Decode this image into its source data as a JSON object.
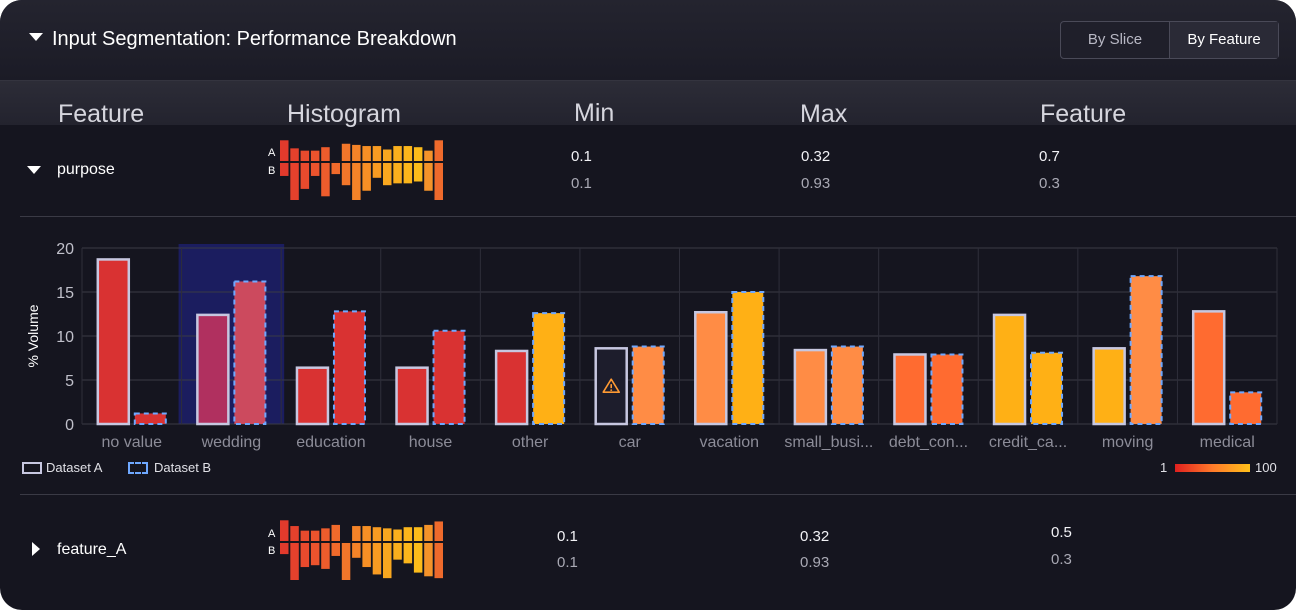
{
  "header": {
    "title": "Input Segmentation: Performance Breakdown",
    "toggle": {
      "options": [
        "By Slice",
        "By Feature"
      ],
      "selected": "By Feature"
    }
  },
  "columns": [
    "Feature",
    "Histogram",
    "Min",
    "Max",
    "Feature"
  ],
  "rows": [
    {
      "name": "purpose",
      "expanded": true,
      "hist_labels": [
        "A",
        "B"
      ],
      "min": [
        "0.1",
        "0.1"
      ],
      "max": [
        "0.32",
        "0.93"
      ],
      "feature": [
        "0.7",
        "0.3"
      ]
    },
    {
      "name": "feature_A",
      "expanded": false,
      "hist_labels": [
        "A",
        "B"
      ],
      "min": [
        "0.1",
        "0.1"
      ],
      "max": [
        "0.32",
        "0.93"
      ],
      "feature": [
        "0.5",
        "0.3"
      ]
    }
  ],
  "chart_data": {
    "type": "bar",
    "ylabel": "% Volume",
    "ylim": [
      0,
      20
    ],
    "yticks": [
      0,
      5,
      10,
      15,
      20
    ],
    "grid": true,
    "categories": [
      "no value",
      "wedding",
      "education",
      "house",
      "other",
      "car",
      "vacation",
      "small_busi...",
      "debt_con...",
      "credit_ca...",
      "moving",
      "medical"
    ],
    "highlighted_category": "wedding",
    "warning_on": {
      "category": "car",
      "series": "Dataset A"
    },
    "series": [
      {
        "name": "Dataset A",
        "values": [
          18.7,
          12.4,
          6.4,
          6.4,
          8.3,
          8.6,
          12.7,
          8.4,
          7.9,
          12.4,
          8.6,
          12.8
        ],
        "colors": [
          "#d93232",
          "#b0305f",
          "#d93232",
          "#d93232",
          "#d93232",
          "#1d1d2c",
          "#ff8c45",
          "#ff8c45",
          "#ff6b30",
          "#ffb015",
          "#ffb015",
          "#ff6b30"
        ]
      },
      {
        "name": "Dataset B",
        "values": [
          1.2,
          16.2,
          12.8,
          10.6,
          12.6,
          8.8,
          15.0,
          8.8,
          7.9,
          8.1,
          16.8,
          3.6
        ],
        "colors": [
          "#d93232",
          "#cc4a5e",
          "#d93232",
          "#d93232",
          "#ffb015",
          "#ff8c45",
          "#ffb015",
          "#ff8c45",
          "#ff6b30",
          "#ffb015",
          "#ff8c45",
          "#ff6b30"
        ]
      }
    ]
  },
  "legend": {
    "items": [
      "Dataset A",
      "Dataset B"
    ],
    "scale_min": "1",
    "scale_max": "100",
    "scale_colors": [
      "#e0201f",
      "#ff7a2a",
      "#ffc01a"
    ]
  },
  "histograms": {
    "purpose": {
      "a": [
        0.9,
        0.55,
        0.45,
        0.45,
        0.6,
        0,
        0.75,
        0.7,
        0.65,
        0.65,
        0.5,
        0.65,
        0.65,
        0.6,
        0.45,
        0.9
      ],
      "b": [
        0.35,
        1.0,
        0.7,
        0.35,
        0.9,
        0.3,
        0.6,
        1.0,
        0.75,
        0.4,
        0.6,
        0.55,
        0.55,
        0.5,
        0.75,
        1.0
      ]
    },
    "feature_A": {
      "a": [
        0.9,
        0.65,
        0.45,
        0.45,
        0.55,
        0.7,
        0,
        0.65,
        0.65,
        0.6,
        0.55,
        0.5,
        0.6,
        0.6,
        0.7,
        0.85
      ],
      "b": [
        0.3,
        1.0,
        0.65,
        0.6,
        0.7,
        0.35,
        1.0,
        0.4,
        0.65,
        0.85,
        0.95,
        0.45,
        0.55,
        0.8,
        0.9,
        0.95
      ]
    },
    "colors": [
      "#e23a2c",
      "#e5412c",
      "#e84a2d",
      "#eb532d",
      "#ee5c2c",
      "#f06a2b",
      "#f2762a",
      "#f48328",
      "#f68f25",
      "#f89b22",
      "#f9a71f",
      "#faaf1d",
      "#fbb61b",
      "#fcbc1a",
      "#f4932a",
      "#ee6a2c"
    ]
  }
}
